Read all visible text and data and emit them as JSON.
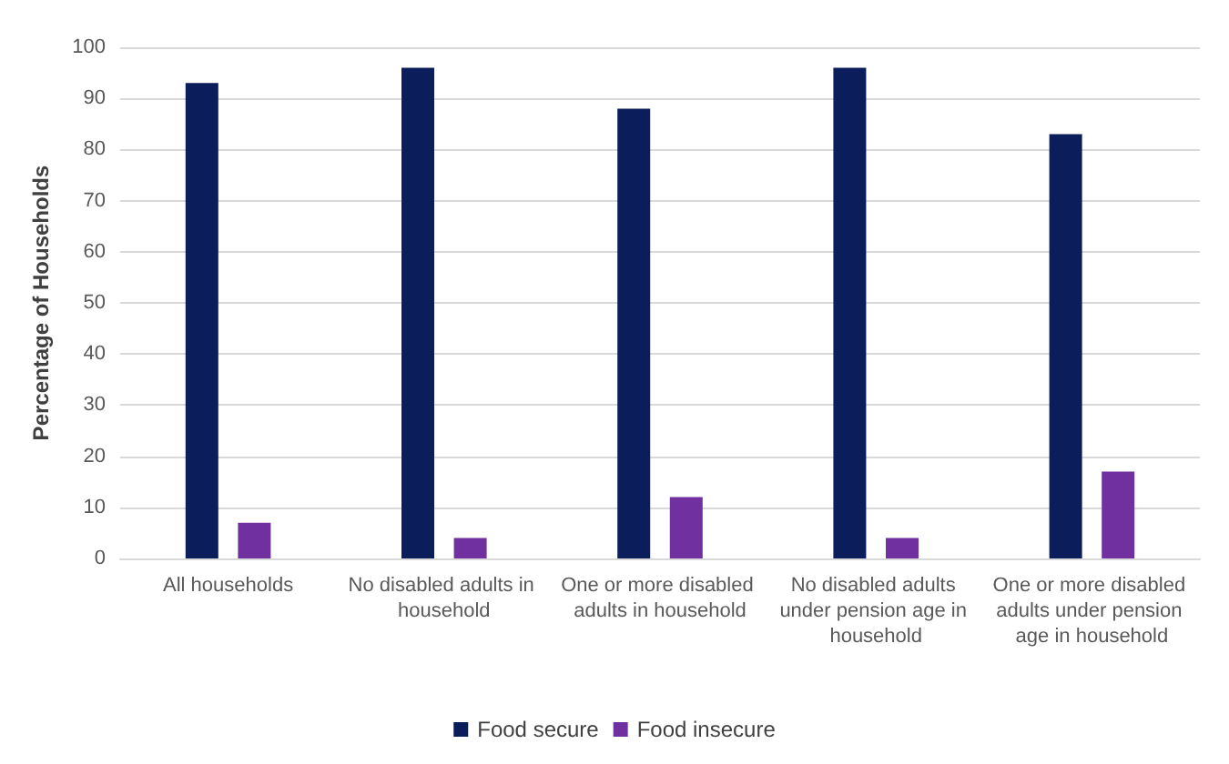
{
  "chart_data": {
    "type": "bar",
    "ylabel": "Percentage of Households",
    "categories": [
      "All households",
      "No disabled adults in household",
      "One or more disabled adults in household",
      "No disabled adults under pension age in household",
      "One or more disabled adults under pension age in household"
    ],
    "series": [
      {
        "name": "Food secure",
        "color": "#0c1d5b",
        "values": [
          93,
          96,
          88,
          96,
          83
        ]
      },
      {
        "name": "Food insecure",
        "color": "#7030a0",
        "values": [
          7,
          4,
          12,
          4,
          17
        ]
      }
    ],
    "ylim": [
      0,
      100
    ],
    "yticks": [
      0,
      10,
      20,
      30,
      40,
      50,
      60,
      70,
      80,
      90,
      100
    ],
    "grid": "y",
    "legend": "bottom"
  }
}
